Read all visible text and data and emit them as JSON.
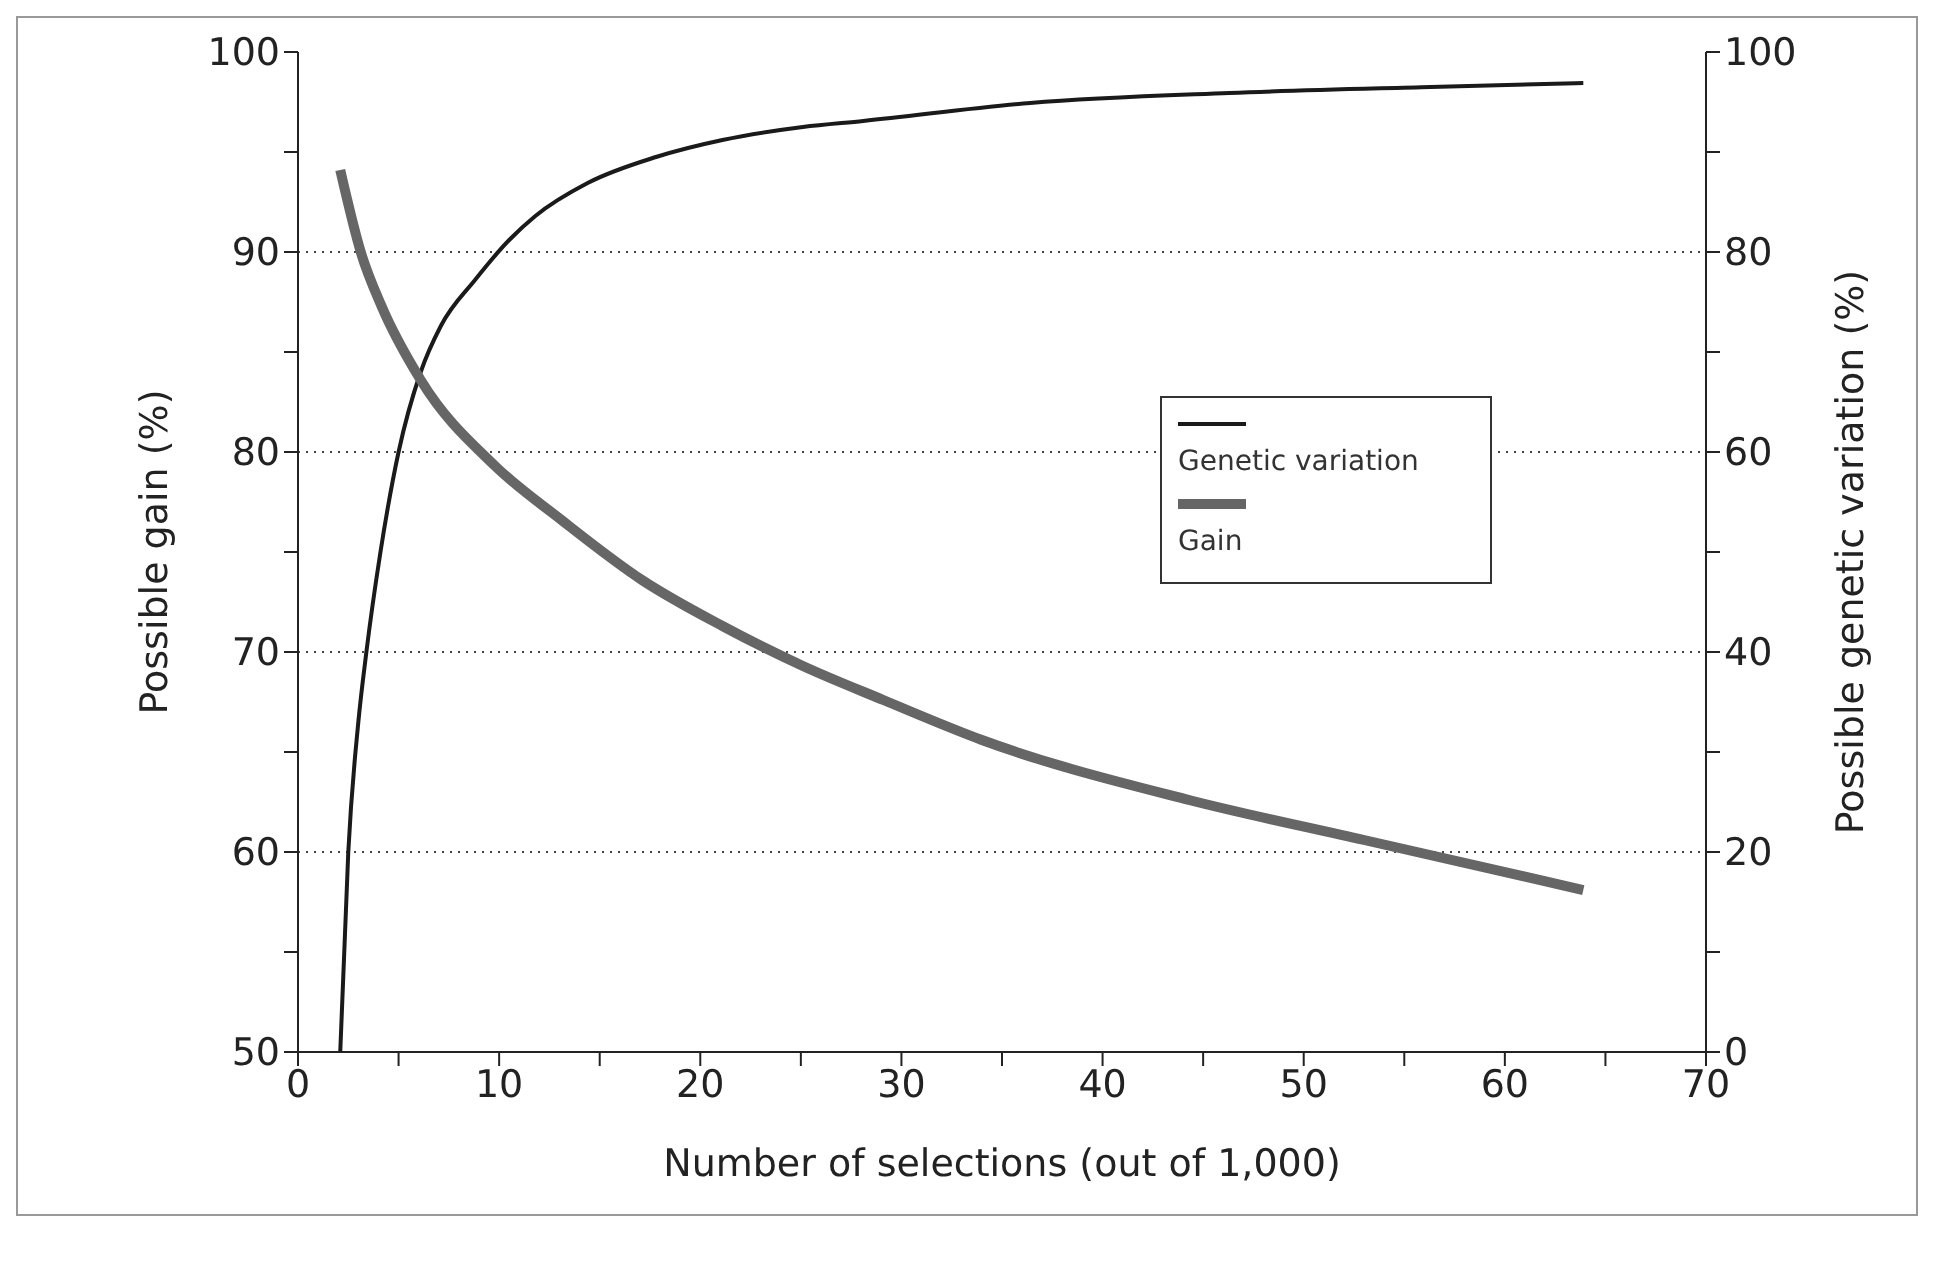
{
  "chart_data": {
    "type": "line",
    "xlabel": "Number of selections (out of 1,000)",
    "ylabel": "Possible gain (%)",
    "y2label": "Possible genetic variation (%)",
    "xlim": [
      0,
      70
    ],
    "xticks": [
      0,
      {
        "value": 5,
        "label": null
      },
      10,
      {
        "value": 15,
        "label": null
      },
      20,
      {
        "value": 25,
        "label": null
      },
      30,
      {
        "value": 35,
        "label": null
      },
      40,
      {
        "value": 45,
        "label": null
      },
      50,
      {
        "value": 55,
        "label": null
      },
      60,
      {
        "value": 65,
        "label": null
      },
      70
    ],
    "ylim": [
      50,
      100
    ],
    "yticks": [
      50,
      {
        "value": 55,
        "label": null
      },
      60,
      {
        "value": 65,
        "label": null
      },
      70,
      {
        "value": 75,
        "label": null
      },
      80,
      {
        "value": 85,
        "label": null
      },
      90,
      {
        "value": 95,
        "label": null
      },
      100
    ],
    "y2lim": [
      0,
      100
    ],
    "y2ticks": [
      0,
      {
        "value": 10,
        "label": null
      },
      20,
      {
        "value": 30,
        "label": null
      },
      40,
      {
        "value": 50,
        "label": null
      },
      60,
      {
        "value": 70,
        "label": null
      },
      80,
      {
        "value": 90,
        "label": null
      },
      100
    ],
    "grid": "y",
    "legend": "right",
    "marker": "none",
    "line_style": "solid",
    "series": [
      {
        "name": "Genetic variation",
        "color": "#1a1a1a",
        "axis": "y2",
        "x": [
          2.1,
          2.5,
          3,
          3.4,
          4.1,
          5,
          6.1,
          7.1,
          8.8,
          10.5,
          11.8,
          14.4,
          17.8,
          21.1,
          25.1,
          28.1,
          36.4,
          46.3,
          56.3,
          63.9
        ],
        "values": [
          0,
          20,
          33,
          40,
          50,
          60,
          68,
          72.6,
          77.2,
          81.2,
          83.6,
          86.9,
          89.5,
          91.2,
          92.5,
          93.1,
          94.9,
          95.9,
          96.5,
          96.9
        ]
      },
      {
        "name": "Gain",
        "color": "#666666",
        "x": [
          2.1,
          3.15,
          4.15,
          6.1,
          9.8,
          13.1,
          17.1,
          21.1,
          25.1,
          29.1,
          34,
          44.3,
          53,
          63.9
        ],
        "values": [
          94.1,
          89.9,
          87.3,
          83.6,
          79.3,
          76.6,
          73.6,
          71.3,
          69.3,
          67.6,
          65.6,
          62.6,
          60.6,
          58.1
        ]
      }
    ]
  }
}
